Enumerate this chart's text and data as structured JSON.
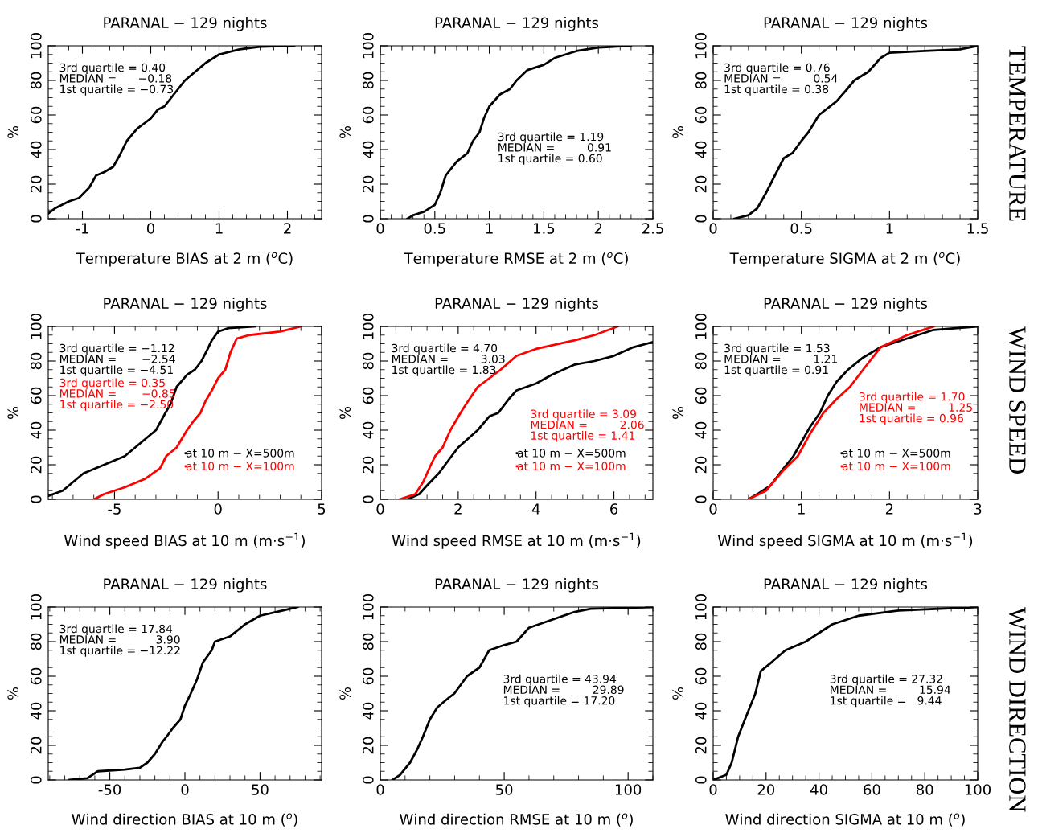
{
  "chart_data": [
    {
      "type": "line",
      "title": "PARANAL − 129 nights",
      "xlabel": "Temperature BIAS at 2 m ($^{o}$C)",
      "ylabel": "%",
      "xlim": [
        -1.5,
        2.5
      ],
      "xticks": [
        -1,
        0,
        1,
        2
      ],
      "ylim": [
        0,
        100
      ],
      "yticks": [
        0,
        20,
        40,
        60,
        80,
        100
      ],
      "series": [
        {
          "color": "#000000",
          "x": [
            -1.5,
            -1.4,
            -1.2,
            -1.05,
            -0.9,
            -0.8,
            -0.68,
            -0.55,
            -0.45,
            -0.35,
            -0.2,
            -0.1,
            0,
            0.1,
            0.2,
            0.3,
            0.4,
            0.5,
            0.65,
            0.8,
            1.0,
            1.3,
            1.6,
            2.1
          ],
          "values": [
            3,
            6,
            10,
            12,
            18,
            25,
            27,
            30,
            37,
            45,
            52,
            55,
            58,
            63,
            65,
            70,
            75,
            80,
            85,
            90,
            95,
            98,
            99.5,
            100
          ]
        }
      ],
      "annotations": [
        "3rd quartile = 0.40\nMEDIAN =      −0.18\n1st quartile = −0.73"
      ]
    },
    {
      "type": "line",
      "title": "PARANAL − 129 nights",
      "xlabel": "Temperature RMSE at 2 m ($^{o}$C)",
      "ylabel": "%",
      "xlim": [
        0,
        2.5
      ],
      "xticks": [
        0,
        0.5,
        1,
        1.5,
        2,
        2.5
      ],
      "ylim": [
        0,
        100
      ],
      "yticks": [
        0,
        20,
        40,
        60,
        80,
        100
      ],
      "series": [
        {
          "color": "#000000",
          "x": [
            0.25,
            0.3,
            0.4,
            0.5,
            0.55,
            0.6,
            0.7,
            0.8,
            0.85,
            0.91,
            0.95,
            1.0,
            1.1,
            1.19,
            1.25,
            1.35,
            1.5,
            1.6,
            1.8,
            2.0,
            2.3
          ],
          "values": [
            0,
            2,
            4,
            8,
            15,
            25,
            33,
            38,
            45,
            50,
            58,
            65,
            72,
            75,
            80,
            86,
            89,
            93,
            97,
            99,
            100
          ]
        }
      ],
      "annotations": [
        "3rd quartile = 1.19\nMEDIAN =         0.91\n1st quartile = 0.60"
      ]
    },
    {
      "type": "line",
      "title": "PARANAL − 129 nights",
      "xlabel": "Temperature SIGMA at 2 m ($^{o}$C)",
      "ylabel": "%",
      "xlim": [
        0,
        1.5
      ],
      "xticks": [
        0,
        0.5,
        1,
        1.5
      ],
      "ylim": [
        0,
        100
      ],
      "yticks": [
        0,
        20,
        40,
        60,
        80,
        100
      ],
      "series": [
        {
          "color": "#000000",
          "x": [
            0.12,
            0.2,
            0.25,
            0.3,
            0.35,
            0.4,
            0.45,
            0.5,
            0.54,
            0.6,
            0.7,
            0.76,
            0.8,
            0.88,
            0.95,
            1.0,
            1.2,
            1.4,
            1.5
          ],
          "values": [
            0,
            2,
            6,
            15,
            25,
            35,
            38,
            45,
            50,
            60,
            68,
            75,
            80,
            85,
            93,
            96,
            97,
            98,
            100
          ]
        }
      ],
      "annotations": [
        "3rd quartile = 0.76\nMEDIAN =         0.54\n1st quartile = 0.38",
        "TEMPERATURE"
      ]
    },
    {
      "type": "line",
      "title": "PARANAL − 129 nights",
      "xlabel": "Wind speed BIAS at 10 m (m·s$^{−1}$)",
      "ylabel": "%",
      "xlim": [
        -8.2,
        5
      ],
      "xticks": [
        -5,
        0,
        5
      ],
      "ylim": [
        0,
        100
      ],
      "yticks": [
        0,
        20,
        40,
        60,
        80,
        100
      ],
      "legend": "bottom right",
      "series": [
        {
          "name": "at 10 m − X=500m",
          "color": "#000000",
          "x": [
            -8.2,
            -7.5,
            -7,
            -6.5,
            -5.5,
            -4.5,
            -4,
            -3.5,
            -3,
            -2.54,
            -2.3,
            -2,
            -1.5,
            -1.12,
            -0.8,
            -0.5,
            -0.3,
            0,
            0.5,
            1.8
          ],
          "values": [
            2,
            5,
            10,
            15,
            20,
            25,
            30,
            35,
            40,
            50,
            55,
            65,
            72,
            75,
            80,
            87,
            92,
            97,
            99,
            100
          ]
        },
        {
          "name": "at 10 m − X=100m",
          "color": "#ff0000",
          "x": [
            -6,
            -5.5,
            -4.5,
            -3.5,
            -2.8,
            -2.5,
            -2,
            -1.5,
            -1.2,
            -0.85,
            -0.6,
            -0.3,
            0,
            0.35,
            0.6,
            0.9,
            1.5,
            3,
            4
          ],
          "values": [
            0,
            3,
            7,
            12,
            18,
            25,
            30,
            40,
            45,
            50,
            57,
            63,
            70,
            75,
            85,
            93,
            95,
            97,
            100
          ]
        }
      ],
      "annotations": [
        "3rd quartile = −1.12\nMEDIAN =       −2.54\n1st quartile = −4.51",
        "3rd quartile = 0.35\nMEDIAN =       −0.85\n1st quartile = −2.50"
      ]
    },
    {
      "type": "line",
      "title": "PARANAL − 129 nights",
      "xlabel": "Wind speed RMSE at 10 m (m·s$^{−1}$)",
      "ylabel": "%",
      "xlim": [
        0,
        7
      ],
      "xticks": [
        0,
        2,
        4,
        6
      ],
      "ylim": [
        0,
        100
      ],
      "yticks": [
        0,
        20,
        40,
        60,
        80,
        100
      ],
      "legend": "bottom right",
      "series": [
        {
          "name": "at 10 m − X=500m",
          "color": "#000000",
          "x": [
            0.7,
            1,
            1.2,
            1.5,
            1.83,
            2,
            2.5,
            2.8,
            3.03,
            3.3,
            3.5,
            4,
            4.4,
            4.7,
            5,
            5.5,
            6,
            6.5,
            7
          ],
          "values": [
            0,
            3,
            8,
            15,
            25,
            30,
            40,
            48,
            50,
            58,
            63,
            67,
            72,
            75,
            78,
            80,
            83,
            88,
            91
          ]
        },
        {
          "name": "at 10 m − X=100m",
          "color": "#ff0000",
          "x": [
            0.5,
            0.9,
            1.1,
            1.3,
            1.41,
            1.6,
            1.8,
            2.06,
            2.2,
            2.5,
            2.8,
            3.09,
            3.5,
            4,
            5,
            5.5,
            6.1
          ],
          "values": [
            0,
            3,
            10,
            20,
            25,
            30,
            40,
            50,
            55,
            65,
            70,
            75,
            83,
            87,
            92,
            95,
            100
          ]
        }
      ],
      "annotations": [
        "3rd quartile = 4.70\nMEDIAN =         3.03\n1st quartile = 1.83",
        "3rd quartile = 3.09\nMEDIAN =         2.06\n1st quartile = 1.41"
      ]
    },
    {
      "type": "line",
      "title": "PARANAL − 129 nights",
      "xlabel": "Wind speed SIGMA at 10 m (m·s$^{−1}$)",
      "ylabel": "%",
      "xlim": [
        0,
        3
      ],
      "xticks": [
        0,
        1,
        2,
        3
      ],
      "ylim": [
        0,
        100
      ],
      "yticks": [
        0,
        20,
        40,
        60,
        80,
        100
      ],
      "legend": "bottom right",
      "series": [
        {
          "name": "at 10 m − X=500m",
          "color": "#000000",
          "x": [
            0.4,
            0.5,
            0.65,
            0.8,
            0.91,
            1,
            1.1,
            1.21,
            1.3,
            1.4,
            1.53,
            1.7,
            1.9,
            2.2,
            2.5,
            3
          ],
          "values": [
            0,
            3,
            8,
            18,
            25,
            33,
            42,
            50,
            60,
            68,
            75,
            82,
            88,
            93,
            98,
            100
          ]
        },
        {
          "name": "at 10 m − X=100m",
          "color": "#ff0000",
          "x": [
            0.4,
            0.6,
            0.8,
            0.96,
            1.1,
            1.25,
            1.4,
            1.55,
            1.7,
            1.9,
            2.2,
            2.5
          ],
          "values": [
            0,
            5,
            17,
            25,
            38,
            50,
            58,
            65,
            75,
            88,
            95,
            100
          ]
        }
      ],
      "annotations": [
        "3rd quartile = 1.53\nMEDIAN =         1.21\n1st quartile = 0.91",
        "3rd quartile = 1.70\nMEDIAN =         1.25\n1st quartile = 0.96",
        "WIND SPEED"
      ]
    },
    {
      "type": "line",
      "title": "PARANAL − 129 nights",
      "xlabel": "Wind direction BIAS at 10 m ($^{o}$)",
      "ylabel": "%",
      "xlim": [
        -91,
        91
      ],
      "xticks": [
        -50,
        0,
        50
      ],
      "ylim": [
        0,
        100
      ],
      "yticks": [
        0,
        20,
        40,
        60,
        80,
        100
      ],
      "series": [
        {
          "color": "#000000",
          "x": [
            -77,
            -65,
            -58,
            -40,
            -30,
            -25,
            -20,
            -15,
            -12.22,
            -8,
            -3,
            0,
            3.9,
            8,
            12,
            17.84,
            20,
            30,
            40,
            50,
            65,
            75
          ],
          "values": [
            0,
            1,
            5,
            6,
            7,
            10,
            15,
            22,
            25,
            30,
            35,
            43,
            50,
            58,
            68,
            75,
            80,
            83,
            90,
            95,
            98,
            100
          ]
        }
      ],
      "annotations": [
        "3rd quartile = 17.84\nMEDIAN =           3.90\n1st quartile = −12.22"
      ]
    },
    {
      "type": "line",
      "title": "PARANAL − 129 nights",
      "xlabel": "Wind direction RMSE at 10 m ($^{o}$)",
      "ylabel": "%",
      "xlim": [
        0,
        110
      ],
      "xticks": [
        0,
        50,
        100
      ],
      "ylim": [
        0,
        100
      ],
      "yticks": [
        0,
        20,
        40,
        60,
        80,
        100
      ],
      "series": [
        {
          "color": "#000000",
          "x": [
            5,
            8,
            12,
            15,
            17.2,
            20,
            23,
            28,
            29.89,
            35,
            40,
            43.94,
            50,
            55,
            60,
            70,
            78,
            85,
            110
          ],
          "values": [
            0,
            3,
            10,
            18,
            25,
            35,
            42,
            48,
            50,
            60,
            65,
            75,
            78,
            80,
            88,
            93,
            97,
            99,
            100
          ]
        }
      ],
      "annotations": [
        "3rd quartile = 43.94\nMEDIAN =         29.89\n1st quartile = 17.20"
      ]
    },
    {
      "type": "line",
      "title": "PARANAL − 129 nights",
      "xlabel": "Wind direction SIGMA at 10 m ($^{o}$)",
      "ylabel": "%",
      "xlim": [
        0,
        100
      ],
      "xticks": [
        0,
        20,
        40,
        60,
        80,
        100
      ],
      "ylim": [
        0,
        100
      ],
      "yticks": [
        0,
        20,
        40,
        60,
        80,
        100
      ],
      "series": [
        {
          "color": "#000000",
          "x": [
            0,
            5,
            7,
            9.44,
            12,
            15.94,
            18,
            22,
            27.32,
            35,
            40,
            45,
            55,
            70,
            100
          ],
          "values": [
            0,
            3,
            10,
            25,
            35,
            50,
            63,
            68,
            75,
            80,
            85,
            90,
            95,
            98,
            100
          ]
        }
      ],
      "annotations": [
        "3rd quartile = 27.32\nMEDIAN =         15.94\n1st quartile =   9.44",
        "WIND DIRECTION"
      ]
    }
  ]
}
